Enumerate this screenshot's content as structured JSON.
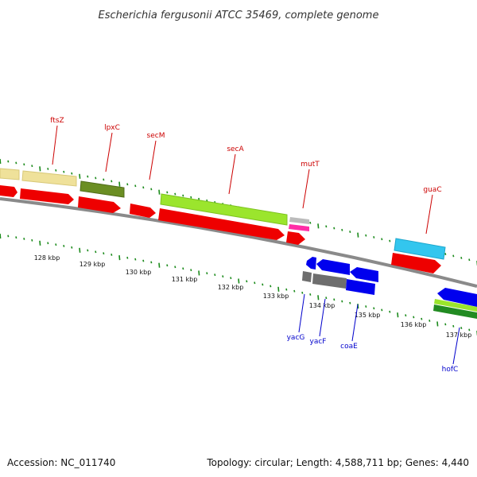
{
  "title": "Escherichia fergusonii ATCC 35469, complete genome",
  "footer": {
    "accession": "Accession: NC_011740",
    "summary": "Topology: circular; Length: 4,588,711 bp; Genes: 4,440"
  },
  "scale": {
    "ticks": [
      "128 kbp",
      "129 kbp",
      "130 kbp",
      "131 kbp",
      "132 kbp",
      "133 kbp",
      "134 kbp",
      "135 kbp",
      "136 kbp",
      "137 kbp"
    ]
  },
  "colors": {
    "backbone": "#8a8a8a",
    "tick": "#1a8a1a",
    "forward_label": "#cc0000",
    "reverse_label": "#0000cc"
  },
  "forward_labels": [
    "ftsZ",
    "lpxC",
    "secM",
    "secA",
    "mutT",
    "guaC"
  ],
  "reverse_labels": [
    "yacG",
    "yacF",
    "coaE",
    "hofC"
  ]
}
